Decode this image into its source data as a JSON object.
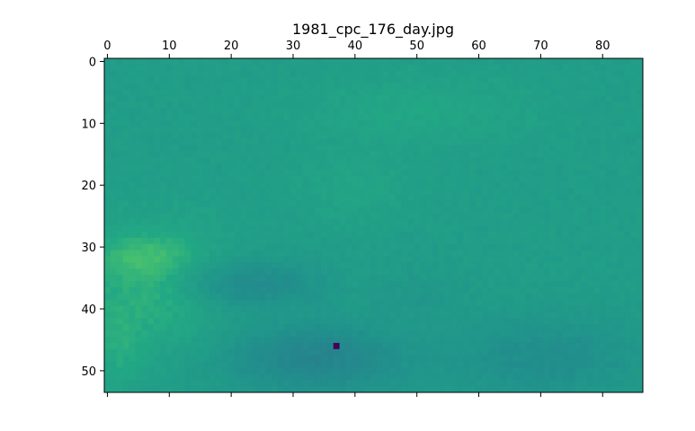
{
  "chart_data": {
    "type": "heatmap",
    "title": "1981_cpc_176_day.jpg",
    "xlabel": "",
    "ylabel": "",
    "x_axis_position": "top",
    "y_inverted": true,
    "xlim": [
      -0.5,
      86.5
    ],
    "ylim": [
      53.5,
      -0.5
    ],
    "x_ticks": [
      0,
      10,
      20,
      30,
      40,
      50,
      60,
      70,
      80
    ],
    "y_ticks": [
      0,
      10,
      20,
      30,
      40,
      50
    ],
    "colormap": "viridis",
    "grid_shape": [
      54,
      87
    ],
    "regions": [
      {
        "shape": "background",
        "level": 0.62
      },
      {
        "shape": "ellipse",
        "cx": 50,
        "cy": 8,
        "rx": 22,
        "ry": 7,
        "level": 0.72
      },
      {
        "shape": "ellipse",
        "cx": 40,
        "cy": 20,
        "rx": 12,
        "ry": 8,
        "level": 0.7
      },
      {
        "shape": "ellipse",
        "cx": 8,
        "cy": 36,
        "rx": 14,
        "ry": 12,
        "level": 0.82
      },
      {
        "shape": "ellipse",
        "cx": 6,
        "cy": 32,
        "rx": 8,
        "ry": 4,
        "level": 0.92
      },
      {
        "shape": "ellipse",
        "cx": 2,
        "cy": 44,
        "rx": 6,
        "ry": 10,
        "level": 0.8
      },
      {
        "shape": "ellipse",
        "cx": 24,
        "cy": 36,
        "rx": 14,
        "ry": 5,
        "level": 0.42
      },
      {
        "shape": "ellipse",
        "cx": 34,
        "cy": 48,
        "rx": 18,
        "ry": 7,
        "level": 0.33
      },
      {
        "shape": "ellipse",
        "cx": 70,
        "cy": 48,
        "rx": 22,
        "ry": 9,
        "level": 0.45
      },
      {
        "shape": "ellipse",
        "cx": 50,
        "cy": 38,
        "rx": 10,
        "ry": 6,
        "level": 0.55
      }
    ],
    "min_point": {
      "x": 37,
      "y": 46,
      "level": 0.0
    }
  }
}
